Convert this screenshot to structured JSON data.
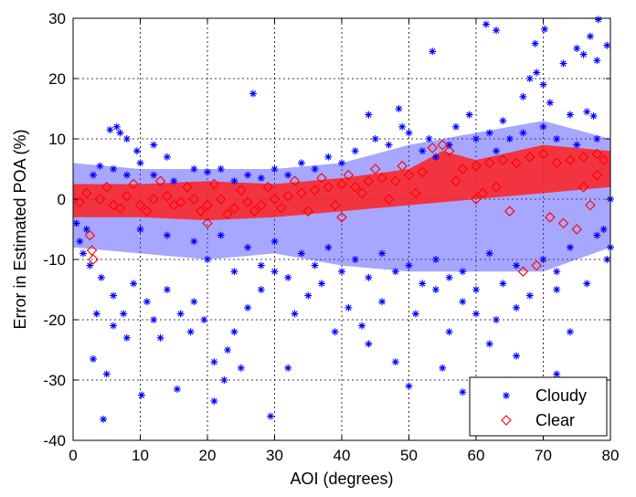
{
  "chart_data": {
    "type": "scatter",
    "xlabel": "AOI (degrees)",
    "ylabel": "Error in Estimated POA (%)",
    "xlim": [
      0,
      80
    ],
    "ylim": [
      -40,
      30
    ],
    "xticks": [
      "0",
      "10",
      "20",
      "30",
      "40",
      "50",
      "60",
      "70",
      "80"
    ],
    "yticks": [
      "30",
      "20",
      "10",
      "0",
      "-10",
      "-20",
      "-30",
      "-40"
    ],
    "grid": true,
    "legend_position": "bottom-right",
    "series": [
      {
        "name": "Cloudy",
        "marker": "asterisk",
        "color": "#0000ff",
        "points": [
          [
            4.5,
            -36.5
          ],
          [
            10.2,
            -32.5
          ],
          [
            26.8,
            17.5
          ],
          [
            29.4,
            -36
          ],
          [
            32,
            -28
          ],
          [
            61.5,
            29
          ],
          [
            63,
            28
          ],
          [
            68.8,
            25.8
          ],
          [
            70.2,
            28.2
          ],
          [
            78.2,
            29.8
          ],
          [
            79.5,
            25.5
          ],
          [
            53.5,
            24.5
          ],
          [
            58,
            -32
          ],
          [
            55,
            -28
          ],
          [
            50,
            -31
          ],
          [
            3,
            -26.5
          ],
          [
            5,
            -29
          ],
          [
            15.5,
            -31.5
          ],
          [
            21,
            -33.5
          ],
          [
            22.5,
            -30
          ],
          [
            25,
            -28
          ],
          [
            8,
            -23
          ],
          [
            6,
            -21
          ],
          [
            12,
            -20
          ],
          [
            17.5,
            -22
          ],
          [
            39,
            -22
          ],
          [
            44,
            -24
          ],
          [
            48,
            -27
          ],
          [
            62,
            -24
          ],
          [
            66,
            -26
          ],
          [
            72,
            -29
          ],
          [
            74,
            -22
          ],
          [
            5.5,
            11.5
          ],
          [
            6.5,
            12
          ],
          [
            7,
            11
          ],
          [
            8,
            10
          ],
          [
            9.5,
            8
          ],
          [
            12,
            9
          ],
          [
            14,
            7
          ],
          [
            44,
            14
          ],
          [
            48.5,
            15
          ],
          [
            49,
            12
          ],
          [
            52,
            8
          ],
          [
            53,
            10
          ],
          [
            57,
            12
          ],
          [
            59,
            14
          ],
          [
            62,
            11
          ],
          [
            64,
            13
          ],
          [
            67,
            17
          ],
          [
            68,
            20
          ],
          [
            69,
            21
          ],
          [
            70,
            19
          ],
          [
            71,
            16
          ],
          [
            74,
            14
          ],
          [
            76.5,
            14.5
          ],
          [
            77.5,
            13.8
          ],
          [
            73,
            22.5
          ],
          [
            75,
            25
          ],
          [
            76,
            24
          ],
          [
            78,
            23
          ],
          [
            77,
            27
          ],
          [
            80,
            0
          ],
          [
            79,
            -5
          ],
          [
            80,
            -8
          ],
          [
            79.5,
            -10
          ],
          [
            76.5,
            -14
          ],
          [
            72,
            -15
          ],
          [
            66,
            -18
          ],
          [
            63,
            -20
          ],
          [
            60,
            -19
          ],
          [
            58,
            -17
          ],
          [
            56,
            -22
          ],
          [
            54,
            -15
          ],
          [
            51,
            -19
          ],
          [
            46,
            -17
          ],
          [
            43,
            -21
          ],
          [
            41,
            -18
          ],
          [
            37,
            -14
          ],
          [
            35,
            -16
          ],
          [
            33,
            -19
          ],
          [
            30,
            -12
          ],
          [
            28,
            -15
          ],
          [
            26,
            -18
          ],
          [
            24,
            -22
          ],
          [
            23,
            -25
          ],
          [
            21,
            -27
          ],
          [
            19.5,
            -20
          ],
          [
            18,
            -17
          ],
          [
            16,
            -19
          ],
          [
            14,
            -15
          ],
          [
            13,
            -23
          ],
          [
            11,
            -17
          ],
          [
            9,
            -14
          ],
          [
            7.5,
            -19
          ],
          [
            6,
            -16
          ],
          [
            4.2,
            -13
          ],
          [
            3.5,
            -19
          ],
          [
            2.5,
            -11
          ],
          [
            1.5,
            -9
          ],
          [
            1,
            -7
          ],
          [
            0.5,
            -4
          ],
          [
            2,
            -5
          ],
          [
            3,
            4
          ],
          [
            4,
            5.5
          ],
          [
            6,
            5
          ],
          [
            8,
            4
          ],
          [
            10,
            6
          ],
          [
            12,
            4
          ],
          [
            15,
            3
          ],
          [
            18,
            5
          ],
          [
            20,
            4.5
          ],
          [
            22,
            5
          ],
          [
            24,
            3
          ],
          [
            26,
            4
          ],
          [
            28,
            3.5
          ],
          [
            30,
            5
          ],
          [
            32,
            4
          ],
          [
            34,
            6
          ],
          [
            36,
            5
          ],
          [
            38,
            7
          ],
          [
            40,
            6
          ],
          [
            42,
            8
          ],
          [
            45,
            10
          ],
          [
            47,
            9
          ],
          [
            50,
            11
          ],
          [
            54,
            7
          ],
          [
            56,
            9
          ],
          [
            60,
            10
          ],
          [
            63,
            8
          ],
          [
            65,
            10
          ],
          [
            67,
            11
          ],
          [
            70,
            12
          ],
          [
            72,
            10
          ],
          [
            75,
            9
          ],
          [
            78,
            10
          ],
          [
            10,
            -5
          ],
          [
            14,
            -6
          ],
          [
            18,
            -7
          ],
          [
            22,
            -6
          ],
          [
            26,
            -8
          ],
          [
            30,
            -7
          ],
          [
            34,
            -9
          ],
          [
            38,
            -8
          ],
          [
            42,
            -10
          ],
          [
            46,
            -9
          ],
          [
            50,
            -11
          ],
          [
            54,
            -10
          ],
          [
            58,
            -12
          ],
          [
            62,
            -9
          ],
          [
            66,
            -11
          ],
          [
            70,
            -10
          ],
          [
            74,
            -8
          ],
          [
            78,
            -6
          ],
          [
            20,
            -10
          ],
          [
            24,
            -12
          ],
          [
            28,
            -11
          ],
          [
            32,
            -13
          ],
          [
            36,
            -11
          ],
          [
            40,
            -12
          ],
          [
            44,
            -13
          ],
          [
            48,
            -12
          ],
          [
            52,
            -14
          ],
          [
            56,
            -13
          ],
          [
            60,
            -15
          ],
          [
            64,
            -14
          ],
          [
            68,
            -16
          ],
          [
            72,
            -12
          ]
        ]
      },
      {
        "name": "Clear",
        "marker": "diamond",
        "color": "#ff0000",
        "points": [
          [
            1,
            -0.5
          ],
          [
            2,
            1
          ],
          [
            2.5,
            -6
          ],
          [
            2.8,
            -8.5
          ],
          [
            3,
            -10
          ],
          [
            4,
            0
          ],
          [
            6,
            -1
          ],
          [
            8,
            0.5
          ],
          [
            10,
            -1
          ],
          [
            12,
            0
          ],
          [
            14,
            0.5
          ],
          [
            16,
            -0.5
          ],
          [
            18,
            0
          ],
          [
            20,
            -1
          ],
          [
            22,
            0
          ],
          [
            24,
            -1.5
          ],
          [
            26,
            -0.5
          ],
          [
            28,
            -1
          ],
          [
            30,
            0
          ],
          [
            32,
            0.5
          ],
          [
            34,
            1
          ],
          [
            36,
            1.5
          ],
          [
            38,
            2
          ],
          [
            40,
            2.5
          ],
          [
            42,
            2
          ],
          [
            44,
            3
          ],
          [
            46,
            3.5
          ],
          [
            48,
            3
          ],
          [
            50,
            4
          ],
          [
            52,
            4.5
          ],
          [
            53.5,
            8.5
          ],
          [
            55,
            9
          ],
          [
            56,
            8
          ],
          [
            58,
            5
          ],
          [
            60,
            5.5
          ],
          [
            62,
            6
          ],
          [
            64,
            6.5
          ],
          [
            66,
            6
          ],
          [
            68,
            7
          ],
          [
            70,
            7.5
          ],
          [
            72,
            6
          ],
          [
            74,
            6.5
          ],
          [
            76,
            7
          ],
          [
            78,
            7.5
          ],
          [
            79,
            6.5
          ],
          [
            67,
            -12
          ],
          [
            69,
            -11
          ],
          [
            71,
            -3
          ],
          [
            73,
            -4
          ],
          [
            75,
            -5
          ],
          [
            77,
            -1
          ],
          [
            65,
            -2
          ],
          [
            63,
            2
          ],
          [
            61,
            1
          ],
          [
            57,
            3
          ],
          [
            51,
            1
          ],
          [
            47,
            0
          ],
          [
            43,
            1
          ],
          [
            39,
            -1
          ],
          [
            35,
            -2
          ],
          [
            31,
            -1.5
          ],
          [
            27,
            -2
          ],
          [
            23,
            -2.5
          ],
          [
            19,
            -2
          ],
          [
            15,
            -1
          ],
          [
            11,
            -2
          ],
          [
            7,
            -1.5
          ],
          [
            5,
            2
          ],
          [
            9,
            2.5
          ],
          [
            13,
            3
          ],
          [
            17,
            2
          ],
          [
            21,
            2.5
          ],
          [
            25,
            1.5
          ],
          [
            29,
            2
          ],
          [
            33,
            3
          ],
          [
            37,
            3.5
          ],
          [
            41,
            4
          ],
          [
            45,
            5
          ],
          [
            49,
            5.5
          ],
          [
            20,
            -4
          ],
          [
            40,
            -3
          ],
          [
            60,
            0
          ],
          [
            76,
            2
          ],
          [
            78,
            4
          ]
        ]
      }
    ]
  }
}
